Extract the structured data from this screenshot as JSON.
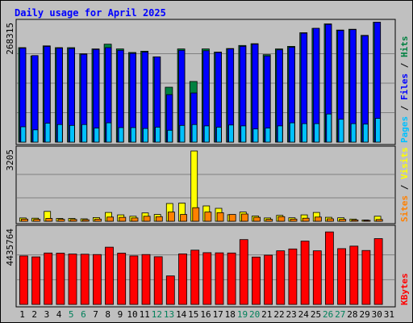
{
  "chart_data": {
    "type": "bar",
    "title": "Daily usage for April 2025",
    "days": [
      "1",
      "2",
      "3",
      "4",
      "5",
      "6",
      "7",
      "8",
      "9",
      "10",
      "11",
      "12",
      "13",
      "14",
      "15",
      "16",
      "17",
      "18",
      "19",
      "20",
      "21",
      "22",
      "23",
      "24",
      "25",
      "26",
      "27",
      "28",
      "29",
      "30",
      "31"
    ],
    "weekend_days": [
      "5",
      "6",
      "12",
      "13",
      "19",
      "20",
      "26",
      "27"
    ],
    "panels": {
      "top": {
        "ymax": 268315,
        "ymax_label": "268315",
        "legend": [
          "Pages",
          "Files",
          "Hits"
        ],
        "series": [
          {
            "name": "Hits",
            "color": "#008040",
            "values": [
              215000,
              196000,
              219000,
              215000,
              215000,
              201000,
              212000,
              223000,
              212000,
              204000,
              207000,
              194000,
              125000,
              212000,
              138000,
              212000,
              205000,
              213000,
              220000,
              224000,
              199000,
              212000,
              218000,
              249000,
              259000,
              269000,
              255000,
              257000,
              243000,
              273000,
              0
            ]
          },
          {
            "name": "Files",
            "color": "#0000ff",
            "values": [
              214000,
              197000,
              218000,
              214000,
              213000,
              200000,
              211000,
              215000,
              209000,
              202000,
              205000,
              194000,
              108000,
              209000,
              112000,
              208000,
              204000,
              212000,
              218000,
              223000,
              196000,
              210000,
              216000,
              248000,
              259000,
              268000,
              254000,
              256000,
              242000,
              273000,
              0
            ]
          },
          {
            "name": "Pages",
            "color": "#00c0ff",
            "values": [
              35000,
              28000,
              43000,
              40000,
              38000,
              40000,
              32000,
              44000,
              33000,
              33000,
              31000,
              34000,
              27000,
              38000,
              40000,
              37000,
              34000,
              39000,
              37000,
              30000,
              32000,
              37000,
              44000,
              42000,
              42000,
              64000,
              52000,
              42000,
              41000,
              54000,
              0
            ]
          }
        ]
      },
      "middle": {
        "ymax": 3205,
        "ymax_label": "3205",
        "legend": [
          "Sites",
          "Visits"
        ],
        "series": [
          {
            "name": "Visits",
            "color": "#ffff00",
            "values": [
              150,
              140,
              450,
              130,
              130,
              110,
              170,
              400,
              290,
              230,
              380,
              310,
              810,
              830,
              3205,
              700,
              590,
              300,
              420,
              240,
              150,
              270,
              160,
              290,
              400,
              180,
              160,
              100,
              60,
              230,
              0
            ]
          },
          {
            "name": "Sites",
            "color": "#ff8000",
            "values": [
              100,
              90,
              130,
              90,
              80,
              70,
              100,
              190,
              180,
              150,
              230,
              210,
              420,
              310,
              620,
              420,
              390,
              310,
              330,
              180,
              90,
              210,
              100,
              140,
              190,
              110,
              90,
              60,
              40,
              80,
              0
            ]
          }
        ]
      },
      "bottom": {
        "ymax": 4435764,
        "ymax_label": "4435764",
        "legend": [
          "KBytes"
        ],
        "series": [
          {
            "name": "KBytes",
            "color": "#ff0000",
            "values": [
              2900000,
              2840000,
              3070000,
              3060000,
              3010000,
              3000000,
              2980000,
              3420000,
              3060000,
              2900000,
              2980000,
              2850000,
              1700000,
              3020000,
              3240000,
              3090000,
              3080000,
              3070000,
              3870000,
              2830000,
              2940000,
              3200000,
              3310000,
              3780000,
              3200000,
              4330000,
              3330000,
              3480000,
              3220000,
              3930000,
              0
            ]
          }
        ]
      }
    }
  }
}
